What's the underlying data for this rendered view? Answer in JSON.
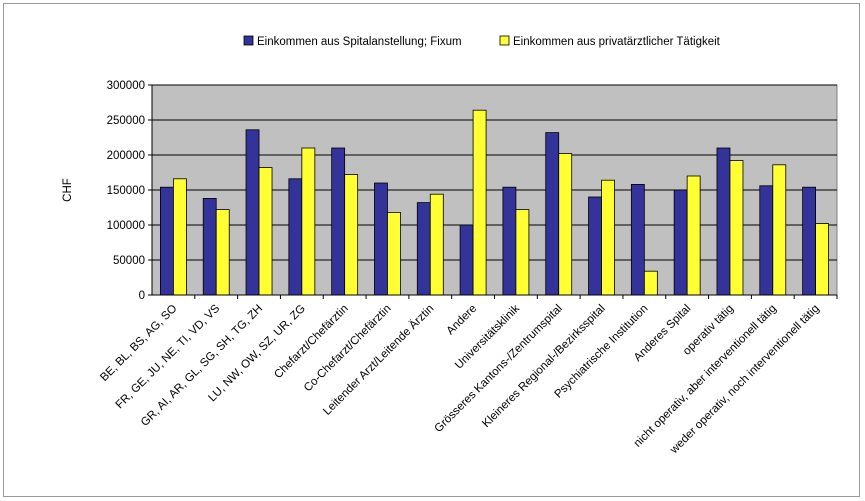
{
  "chart_data": {
    "type": "bar",
    "title": "",
    "xlabel": "",
    "ylabel": "CHF",
    "ylim": [
      0,
      300000
    ],
    "yticks": [
      0,
      50000,
      100000,
      150000,
      200000,
      250000,
      300000
    ],
    "ytick_labels": [
      "0",
      "50000",
      "100000",
      "150000",
      "200000",
      "250000",
      "300000"
    ],
    "grid": true,
    "legend_position": "top",
    "colors": {
      "plot_bg": "#c0c0c0",
      "series1": "#333399",
      "series2": "#ffff33"
    },
    "categories": [
      "BE, BL, BS, AG, SO",
      "FR, GE, JU, NE, TI, VD, VS",
      "GR, AI, AR, GL, SG, SH, TG, ZH",
      "LU, NW, OW, SZ, UR, ZG",
      "Chefarzt/Chefärztin",
      "Co-Chefarzt/Chefärztin",
      "Leitender Arzt/Leitende Ärztin",
      "Andere",
      "Universitätsklinik",
      "Grösseres Kantons-/Zentrumspital",
      "Kleineres Regional-/Bezirksspital",
      "Psychiatrische Institution",
      "Anderes Spital",
      "operativ tätig",
      "nicht operativ, aber interventionell tätig",
      "weder operativ, noch interventionell tätig"
    ],
    "series": [
      {
        "name": "Einkommen aus Spitalanstellung; Fixum",
        "values": [
          154000,
          138000,
          236000,
          166000,
          210000,
          160000,
          132000,
          100000,
          154000,
          232000,
          140000,
          158000,
          150000,
          210000,
          156000,
          154000
        ]
      },
      {
        "name": "Einkommen aus privatärztlicher Tätigkeit",
        "values": [
          166000,
          122000,
          182000,
          210000,
          172000,
          118000,
          144000,
          264000,
          122000,
          202000,
          164000,
          34000,
          170000,
          192000,
          186000,
          102000
        ]
      }
    ]
  }
}
